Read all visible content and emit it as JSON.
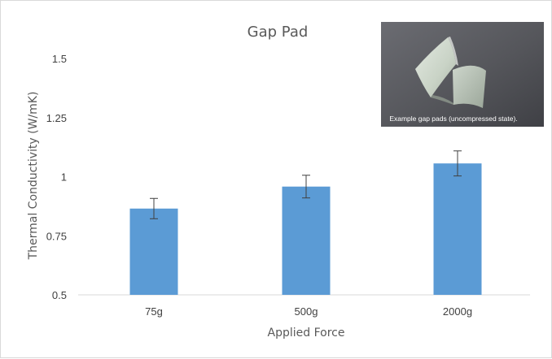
{
  "chart_data": {
    "type": "bar",
    "title": "Gap Pad",
    "xlabel": "Applied Force",
    "ylabel": "Thermal Conductivity (W/mK)",
    "categories": [
      "75g",
      "500g",
      "2000g"
    ],
    "values": [
      0.865,
      0.958,
      1.056
    ],
    "error": [
      0.043,
      0.048,
      0.053
    ],
    "ylim": [
      0.5,
      1.5
    ],
    "yticks": [
      "0.5",
      "0.75",
      "1",
      "1.25",
      "1.5"
    ],
    "ytick_values": [
      0.5,
      0.75,
      1,
      1.25,
      1.5
    ],
    "grid": false,
    "legend": "none",
    "bar_color": "#5b9bd5",
    "error_color": "#404040"
  },
  "inset": {
    "caption": "Example gap pads (uncompressed state).",
    "background": "#595a5f"
  }
}
